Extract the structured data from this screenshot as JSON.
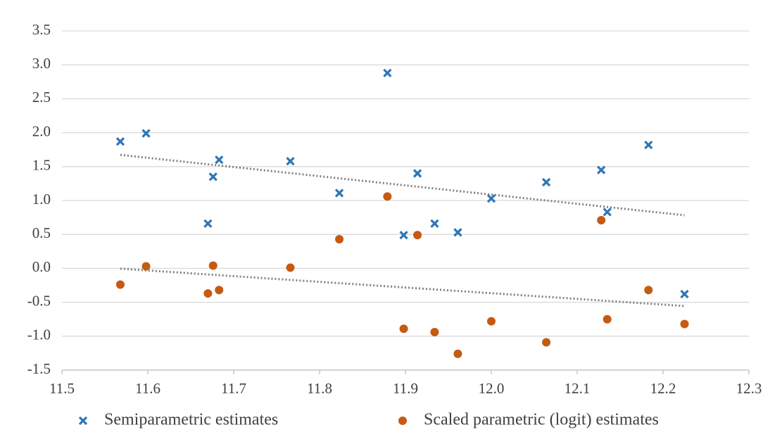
{
  "chart_data": {
    "type": "scatter",
    "x": [
      11.568,
      11.598,
      11.67,
      11.676,
      11.683,
      11.766,
      11.823,
      11.879,
      11.898,
      11.914,
      11.934,
      11.961,
      12.0,
      12.064,
      12.128,
      12.135,
      12.183,
      12.225
    ],
    "series": [
      {
        "name": "Semiparametric estimates",
        "color": "#2e75b6",
        "marker": "x",
        "values": [
          1.87,
          1.99,
          0.66,
          1.35,
          1.6,
          1.58,
          1.11,
          2.88,
          0.49,
          1.4,
          0.66,
          0.53,
          1.03,
          1.27,
          1.45,
          0.83,
          1.82,
          -0.38
        ]
      },
      {
        "name": "Scaled parametric (logit) estimates",
        "color": "#c55a11",
        "marker": "circle",
        "values": [
          -0.24,
          0.03,
          -0.37,
          0.04,
          -0.32,
          0.01,
          0.43,
          1.06,
          -0.89,
          0.49,
          -0.94,
          -1.26,
          -0.78,
          -1.09,
          0.71,
          -0.75,
          -0.32,
          -0.82
        ]
      }
    ],
    "trendline": true,
    "xlim": [
      11.5,
      12.3
    ],
    "xticks": [
      11.5,
      11.6,
      11.7,
      11.8,
      11.9,
      {
        "value": 12.0,
        "label": "12.0"
      },
      12.1,
      12.2,
      12.3
    ],
    "ylim": [
      -1.5,
      3.5
    ],
    "yticks": [
      -1.5,
      {
        "value": -1.0,
        "label": "-1.0"
      },
      -0.5,
      {
        "value": 0.0,
        "label": "0.0"
      },
      0.5,
      {
        "value": 1.0,
        "label": "1.0"
      },
      1.5,
      {
        "value": 2.0,
        "label": "2.0"
      },
      2.5,
      {
        "value": 3.0,
        "label": "3.0"
      },
      3.5
    ],
    "grid": true,
    "legend": "bottom"
  }
}
